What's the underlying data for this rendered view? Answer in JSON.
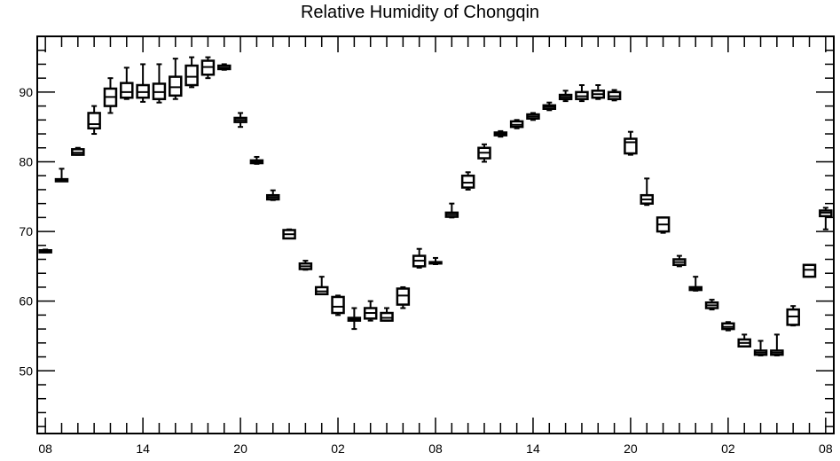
{
  "chart_data": {
    "type": "boxplot",
    "title": "Relative Humidity of Chongqin",
    "xlabel": "",
    "ylabel": "",
    "ylim": [
      41,
      98
    ],
    "yticks": [
      50,
      60,
      70,
      80,
      90
    ],
    "xlim": [
      0,
      49
    ],
    "xticks": [
      {
        "x": 0.5,
        "label": "08"
      },
      {
        "x": 6.5,
        "label": "14"
      },
      {
        "x": 12.5,
        "label": "20"
      },
      {
        "x": 18.5,
        "label": "02"
      },
      {
        "x": 24.5,
        "label": "08"
      },
      {
        "x": 30.5,
        "label": "14"
      },
      {
        "x": 36.5,
        "label": "20"
      },
      {
        "x": 42.5,
        "label": "02"
      },
      {
        "x": 48.5,
        "label": "08"
      }
    ],
    "grid": false,
    "boxes": [
      {
        "x": 0.5,
        "min": 67.0,
        "q1": 67.0,
        "med": 67.2,
        "q3": 67.3,
        "max": 67.4
      },
      {
        "x": 1.5,
        "min": 77.2,
        "q1": 77.2,
        "med": 77.3,
        "q3": 77.5,
        "max": 79.0
      },
      {
        "x": 2.5,
        "min": 81.0,
        "q1": 81.0,
        "med": 81.3,
        "q3": 81.8,
        "max": 82.0
      },
      {
        "x": 3.5,
        "min": 84.0,
        "q1": 84.8,
        "med": 85.4,
        "q3": 87.0,
        "max": 88.0
      },
      {
        "x": 4.5,
        "min": 87.0,
        "q1": 88.0,
        "med": 89.3,
        "q3": 90.5,
        "max": 92.0
      },
      {
        "x": 5.5,
        "min": 89.0,
        "q1": 89.2,
        "med": 90.0,
        "q3": 91.3,
        "max": 93.5
      },
      {
        "x": 6.5,
        "min": 88.6,
        "q1": 89.2,
        "med": 90.0,
        "q3": 91.0,
        "max": 94.0
      },
      {
        "x": 7.5,
        "min": 88.5,
        "q1": 89.0,
        "med": 90.0,
        "q3": 91.2,
        "max": 94.0
      },
      {
        "x": 8.5,
        "min": 89.0,
        "q1": 89.5,
        "med": 90.7,
        "q3": 92.2,
        "max": 94.8
      },
      {
        "x": 9.5,
        "min": 90.7,
        "q1": 91.0,
        "med": 92.2,
        "q3": 93.8,
        "max": 95.0
      },
      {
        "x": 10.5,
        "min": 92.0,
        "q1": 92.5,
        "med": 93.6,
        "q3": 94.5,
        "max": 95.0
      },
      {
        "x": 11.5,
        "min": 93.2,
        "q1": 93.3,
        "med": 93.5,
        "q3": 93.8,
        "max": 94.0
      },
      {
        "x": 12.5,
        "min": 85.0,
        "q1": 85.7,
        "med": 86.0,
        "q3": 86.3,
        "max": 87.0
      },
      {
        "x": 13.5,
        "min": 79.7,
        "q1": 79.8,
        "med": 80.0,
        "q3": 80.2,
        "max": 80.7
      },
      {
        "x": 14.5,
        "min": 74.5,
        "q1": 74.6,
        "med": 74.9,
        "q3": 75.2,
        "max": 75.9
      },
      {
        "x": 15.5,
        "min": 69.0,
        "q1": 69.0,
        "med": 69.6,
        "q3": 70.2,
        "max": 70.3
      },
      {
        "x": 16.5,
        "min": 64.5,
        "q1": 64.6,
        "med": 65.0,
        "q3": 65.4,
        "max": 65.8
      },
      {
        "x": 17.5,
        "min": 61.0,
        "q1": 61.0,
        "med": 61.4,
        "q3": 62.0,
        "max": 63.5
      },
      {
        "x": 18.5,
        "min": 58.0,
        "q1": 58.3,
        "med": 59.2,
        "q3": 60.6,
        "max": 60.8
      },
      {
        "x": 19.5,
        "min": 56.0,
        "q1": 57.2,
        "med": 57.4,
        "q3": 57.6,
        "max": 59.0
      },
      {
        "x": 20.5,
        "min": 57.2,
        "q1": 57.5,
        "med": 58.3,
        "q3": 59.0,
        "max": 60.0
      },
      {
        "x": 21.5,
        "min": 57.2,
        "q1": 57.2,
        "med": 57.6,
        "q3": 58.3,
        "max": 59.0
      },
      {
        "x": 22.5,
        "min": 59.0,
        "q1": 59.5,
        "med": 60.8,
        "q3": 61.8,
        "max": 62.0
      },
      {
        "x": 23.5,
        "min": 64.8,
        "q1": 65.0,
        "med": 65.8,
        "q3": 66.5,
        "max": 67.5
      },
      {
        "x": 24.5,
        "min": 65.3,
        "q1": 65.4,
        "med": 65.5,
        "q3": 65.6,
        "max": 66.2
      },
      {
        "x": 25.5,
        "min": 72.0,
        "q1": 72.1,
        "med": 72.4,
        "q3": 72.7,
        "max": 74.0
      },
      {
        "x": 26.5,
        "min": 76.0,
        "q1": 76.3,
        "med": 77.0,
        "q3": 78.0,
        "max": 78.5
      },
      {
        "x": 27.5,
        "min": 80.0,
        "q1": 80.5,
        "med": 81.3,
        "q3": 82.0,
        "max": 82.5
      },
      {
        "x": 28.5,
        "min": 83.6,
        "q1": 83.8,
        "med": 84.0,
        "q3": 84.2,
        "max": 84.4
      },
      {
        "x": 29.5,
        "min": 84.8,
        "q1": 85.0,
        "med": 85.3,
        "q3": 85.8,
        "max": 86.0
      },
      {
        "x": 30.5,
        "min": 86.0,
        "q1": 86.2,
        "med": 86.5,
        "q3": 86.8,
        "max": 87.0
      },
      {
        "x": 31.5,
        "min": 87.4,
        "q1": 87.6,
        "med": 87.9,
        "q3": 88.1,
        "max": 88.5
      },
      {
        "x": 32.5,
        "min": 88.7,
        "q1": 89.0,
        "med": 89.3,
        "q3": 89.6,
        "max": 90.2
      },
      {
        "x": 33.5,
        "min": 88.7,
        "q1": 89.0,
        "med": 89.4,
        "q3": 90.0,
        "max": 91.0
      },
      {
        "x": 34.5,
        "min": 89.0,
        "q1": 89.2,
        "med": 89.7,
        "q3": 90.2,
        "max": 91.0
      },
      {
        "x": 35.5,
        "min": 88.8,
        "q1": 89.0,
        "med": 89.4,
        "q3": 90.0,
        "max": 90.3
      },
      {
        "x": 36.5,
        "min": 81.0,
        "q1": 81.2,
        "med": 82.8,
        "q3": 83.3,
        "max": 84.3
      },
      {
        "x": 37.5,
        "min": 73.8,
        "q1": 74.0,
        "med": 74.6,
        "q3": 75.2,
        "max": 77.6
      },
      {
        "x": 38.5,
        "min": 69.8,
        "q1": 70.0,
        "med": 71.0,
        "q3": 72.0,
        "max": 72.0
      },
      {
        "x": 39.5,
        "min": 65.0,
        "q1": 65.2,
        "med": 65.6,
        "q3": 66.0,
        "max": 66.5
      },
      {
        "x": 40.5,
        "min": 61.5,
        "q1": 61.6,
        "med": 61.8,
        "q3": 62.0,
        "max": 63.5
      },
      {
        "x": 41.5,
        "min": 58.8,
        "q1": 59.0,
        "med": 59.4,
        "q3": 59.8,
        "max": 60.2
      },
      {
        "x": 42.5,
        "min": 55.8,
        "q1": 56.0,
        "med": 56.3,
        "q3": 56.8,
        "max": 57.0
      },
      {
        "x": 43.5,
        "min": 53.5,
        "q1": 53.5,
        "med": 54.0,
        "q3": 54.5,
        "max": 55.2
      },
      {
        "x": 44.5,
        "min": 52.2,
        "q1": 52.3,
        "med": 52.6,
        "q3": 52.9,
        "max": 54.3
      },
      {
        "x": 45.5,
        "min": 52.2,
        "q1": 52.3,
        "med": 52.6,
        "q3": 52.9,
        "max": 55.2
      },
      {
        "x": 46.5,
        "min": 56.5,
        "q1": 56.6,
        "med": 57.8,
        "q3": 58.8,
        "max": 59.3
      },
      {
        "x": 47.5,
        "min": 63.5,
        "q1": 63.5,
        "med": 64.5,
        "q3": 65.2,
        "max": 65.2
      },
      {
        "x": 48.5,
        "min": 70.3,
        "q1": 72.2,
        "med": 72.7,
        "q3": 73.0,
        "max": 73.4
      }
    ]
  }
}
